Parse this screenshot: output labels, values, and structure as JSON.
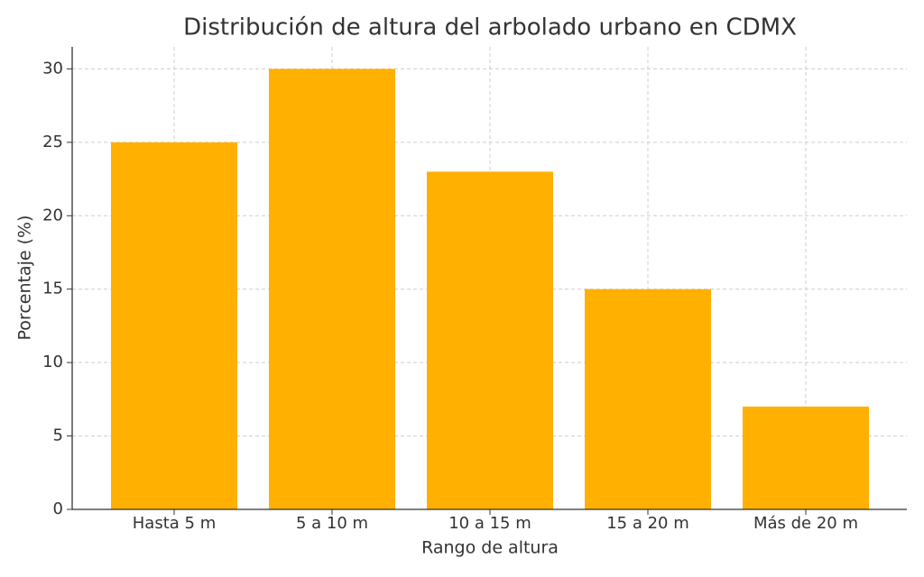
{
  "chart_data": {
    "type": "bar",
    "title": "Distribución de altura del arbolado urbano en CDMX",
    "x_label": "Rango de altura",
    "y_label": "Porcentaje (%)",
    "categories": [
      "Hasta 5 m",
      "5 a 10 m",
      "10 a 15 m",
      "15 a 20 m",
      "Más de 20 m"
    ],
    "values": [
      25,
      30,
      23,
      15,
      7
    ],
    "color": "#ffb000",
    "ylim": [
      0,
      31.5
    ],
    "yticks": [
      0,
      5,
      10,
      15,
      20,
      25,
      30
    ],
    "grid": true
  }
}
